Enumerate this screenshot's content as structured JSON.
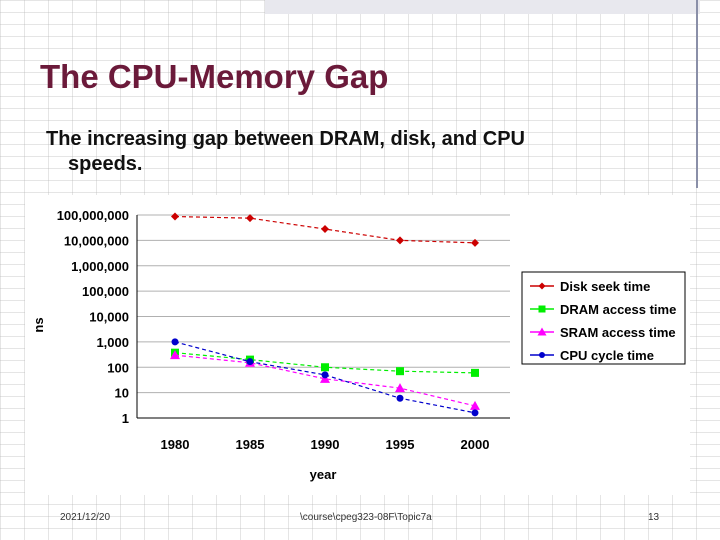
{
  "slide": {
    "title": "The CPU-Memory Gap",
    "subtitle_line1": "The increasing gap between DRAM, disk, and CPU",
    "subtitle_line2": "speeds."
  },
  "footer": {
    "date": "2021/12/20",
    "path": "\\course\\cpeg323-08F\\Topic7a",
    "page": "13"
  },
  "colors": {
    "title": "#6b1a3a",
    "disk": "#cc0000",
    "dram": "#00ee00",
    "sram": "#ff00ff",
    "cpu": "#0000cc"
  },
  "chart_data": {
    "type": "line",
    "title": "",
    "xlabel": "year",
    "ylabel": "ns",
    "yscale": "log",
    "ylim": [
      1,
      100000000
    ],
    "categories": [
      "1980",
      "1985",
      "1990",
      "1995",
      "2000"
    ],
    "y_ticks": [
      "1",
      "10",
      "100",
      "1,000",
      "10,000",
      "100,000",
      "1,000,000",
      "10,000,000",
      "100,000,000"
    ],
    "legend_position": "right",
    "series": [
      {
        "name": "Disk seek time",
        "marker": "diamond",
        "color": "#cc0000",
        "values": [
          87000000,
          75000000,
          28000000,
          10000000,
          8000000
        ]
      },
      {
        "name": "DRAM access time",
        "marker": "square",
        "color": "#00ee00",
        "values": [
          375,
          200,
          100,
          70,
          60
        ]
      },
      {
        "name": "SRAM access time",
        "marker": "triangle",
        "color": "#ff00ff",
        "values": [
          300,
          150,
          35,
          15,
          3
        ]
      },
      {
        "name": "CPU cycle time",
        "marker": "circle",
        "color": "#0000cc",
        "values": [
          1000,
          166,
          50,
          6,
          1.6
        ]
      }
    ]
  }
}
